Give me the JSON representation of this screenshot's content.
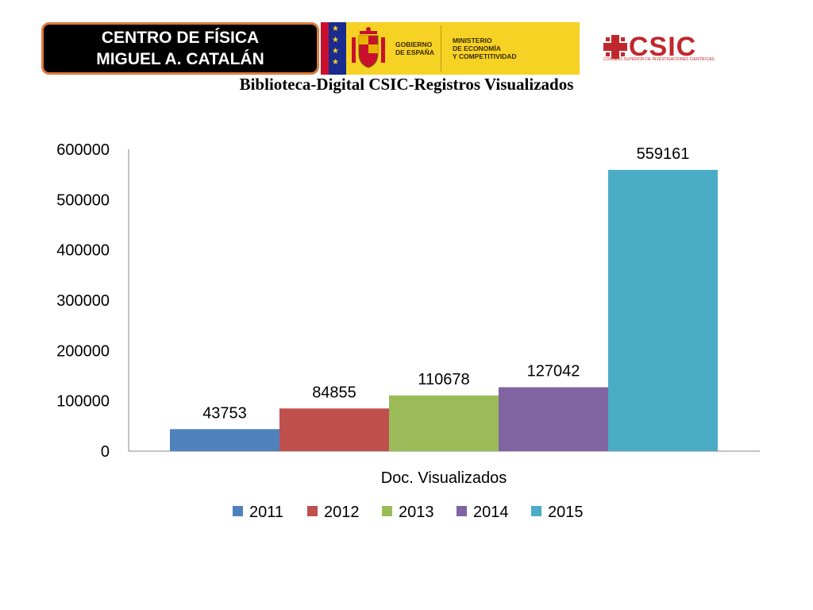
{
  "header": {
    "org_line1": "CENTRO DE FÍSICA",
    "org_line2": "MIGUEL A. CATALÁN",
    "gov_text1": "GOBIERNO",
    "gov_text2": "DE ESPAÑA",
    "min_text1": "MINISTERIO",
    "min_text2": "DE ECONOMÍA",
    "min_text3": "Y COMPETITIVIDAD",
    "csic_logo": "CSIC",
    "csic_sub": "CONSEJO SUPERIOR DE INVESTIGACIONES CIENTÍFICAS"
  },
  "colors": {
    "badge_border": "#e07b3a",
    "gov_yellow": "#f6d224",
    "csic_red": "#c0272d"
  },
  "chart_data": {
    "type": "bar",
    "title": "Biblioteca-Digital CSIC-Registros Visualizados",
    "categories": [
      "Doc. Visualizados"
    ],
    "xlabel": "Doc. Visualizados",
    "ylabel": "",
    "ylim": [
      0,
      600000
    ],
    "yticks": [
      "0",
      "100000",
      "200000",
      "300000",
      "400000",
      "500000",
      "600000"
    ],
    "legend_position": "bottom",
    "grid": false,
    "series": [
      {
        "name": "2011",
        "values": [
          43753
        ],
        "label": "43753",
        "color": "#4f81bd"
      },
      {
        "name": "2012",
        "values": [
          84855
        ],
        "label": "84855",
        "color": "#c0504d"
      },
      {
        "name": "2013",
        "values": [
          110678
        ],
        "label": "110678",
        "color": "#9bbb59"
      },
      {
        "name": "2014",
        "values": [
          127042
        ],
        "label": "127042",
        "color": "#8064a2"
      },
      {
        "name": "2015",
        "values": [
          559161
        ],
        "label": "559161",
        "color": "#4bacc6"
      }
    ]
  }
}
